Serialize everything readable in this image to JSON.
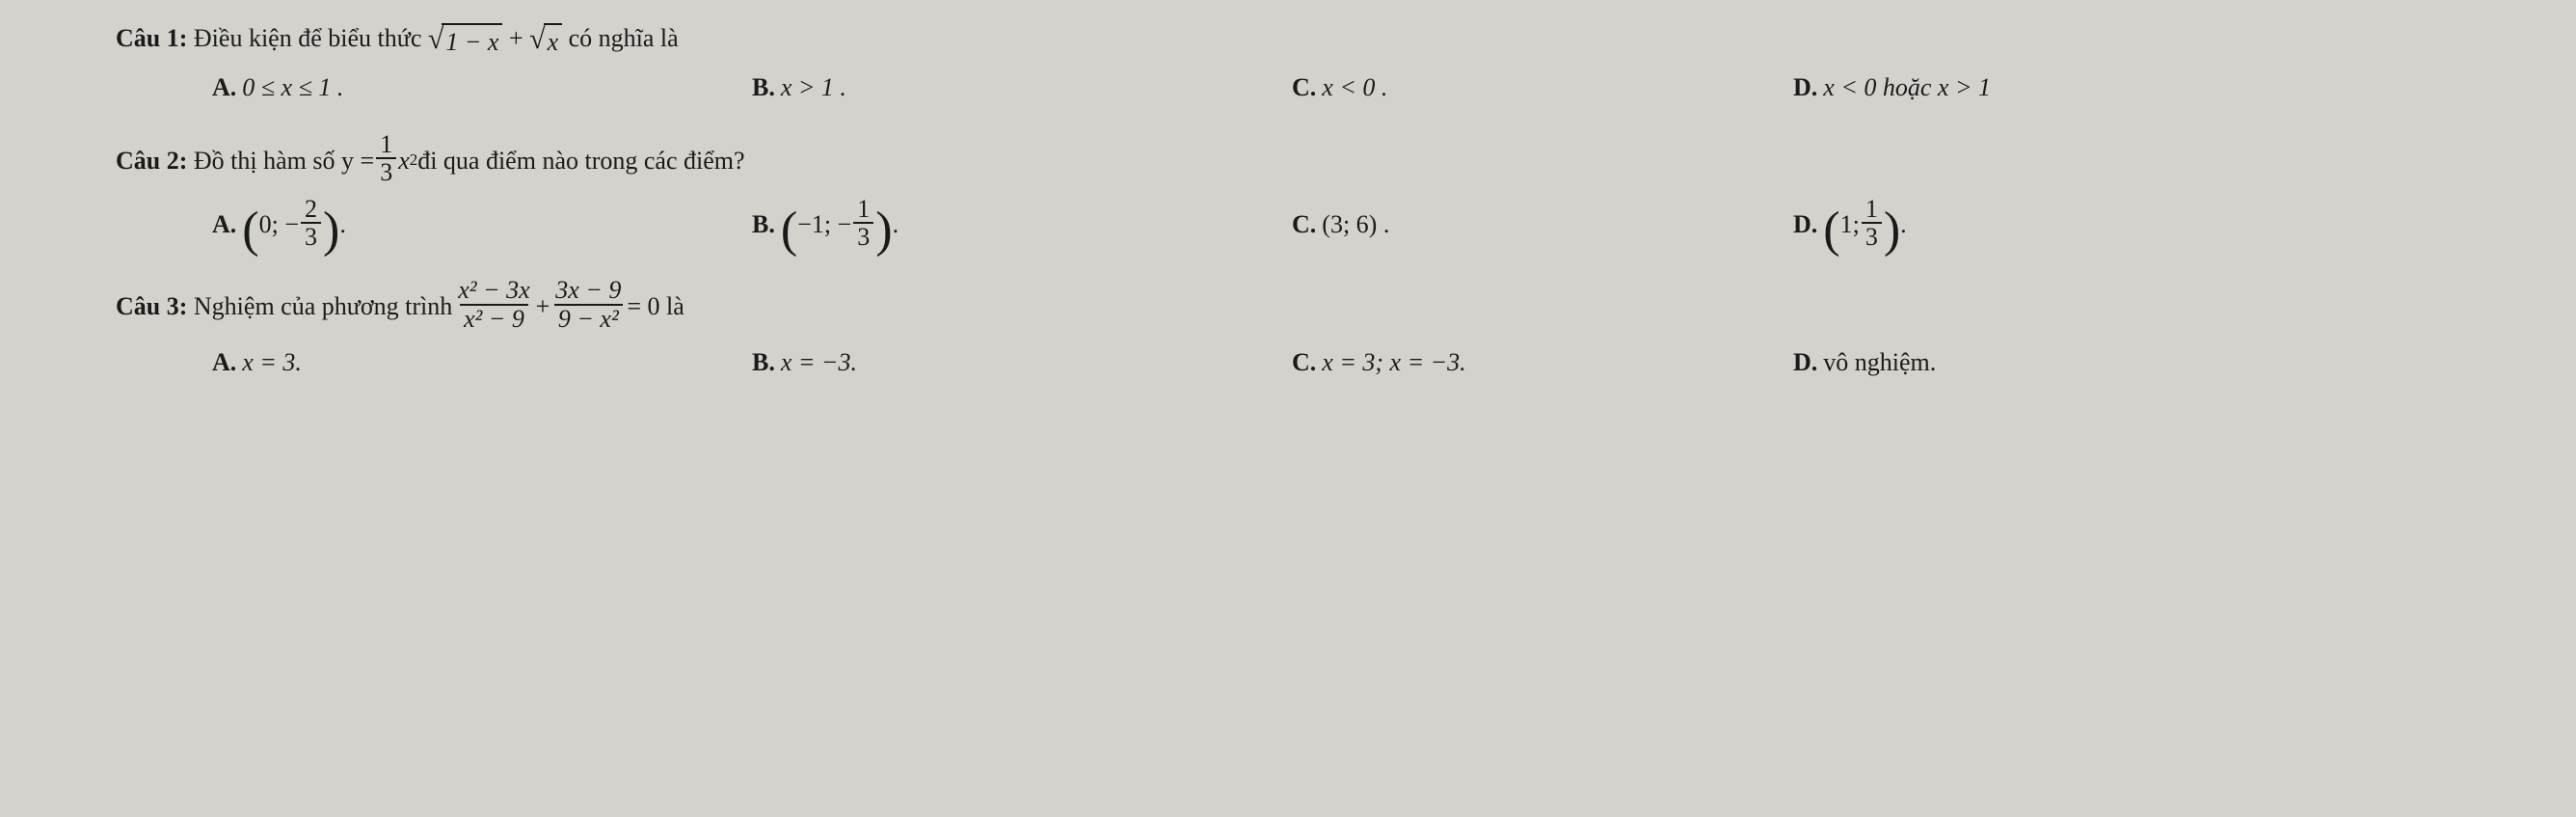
{
  "text_color": "#1a1a1a",
  "background_color": "#d4d2cd",
  "font_family": "Times New Roman",
  "base_font_size_pt": 20,
  "q1": {
    "label": "Câu 1:",
    "stem_prefix": "Điều kiện để biểu thức ",
    "sqrt1_arg": "1 − x",
    "plus": " + ",
    "sqrt2_arg": "x",
    "stem_suffix": "  có nghĩa là",
    "A_label": "A.",
    "A_text": "0 ≤ x ≤ 1 .",
    "B_label": "B.",
    "B_text": "x > 1 .",
    "C_label": "C.",
    "C_text": "x < 0 .",
    "D_label": "D.",
    "D_text": "x < 0  hoặc x > 1"
  },
  "q2": {
    "label": "Câu 2:",
    "stem_prefix": "Đồ thị hàm số  y = ",
    "frac_num": "1",
    "frac_den": "3",
    "x2": "x",
    "sup2": "2",
    "stem_suffix": "  đi qua điểm nào trong các điểm?",
    "A_label": "A.",
    "A_open": "(",
    "A_first": "0; −",
    "A_frac_num": "2",
    "A_frac_den": "3",
    "A_close": ")",
    "A_period": ".",
    "B_label": "B.",
    "B_open": "(",
    "B_first": "−1; −",
    "B_frac_num": "1",
    "B_frac_den": "3",
    "B_close": ")",
    "B_period": ".",
    "C_label": "C.",
    "C_text": "(3; 6) .",
    "D_label": "D.",
    "D_open": "(",
    "D_first": "1; ",
    "D_frac_num": "1",
    "D_frac_den": "3",
    "D_close": ")",
    "D_period": "."
  },
  "q3": {
    "label": "Câu 3:",
    "stem_prefix": "Nghiệm của phương trình  ",
    "f1_num": "x² − 3x",
    "f1_den": "x² − 9",
    "plus": " + ",
    "f2_num": "3x − 9",
    "f2_den": "9 − x²",
    "eq": " = 0  là",
    "A_label": "A.",
    "A_text": "x = 3.",
    "B_label": "B.",
    "B_text": "x = −3.",
    "C_label": "C.",
    "C_text": "x = 3; x = −3.",
    "D_label": "D.",
    "D_text": "vô nghiệm."
  }
}
